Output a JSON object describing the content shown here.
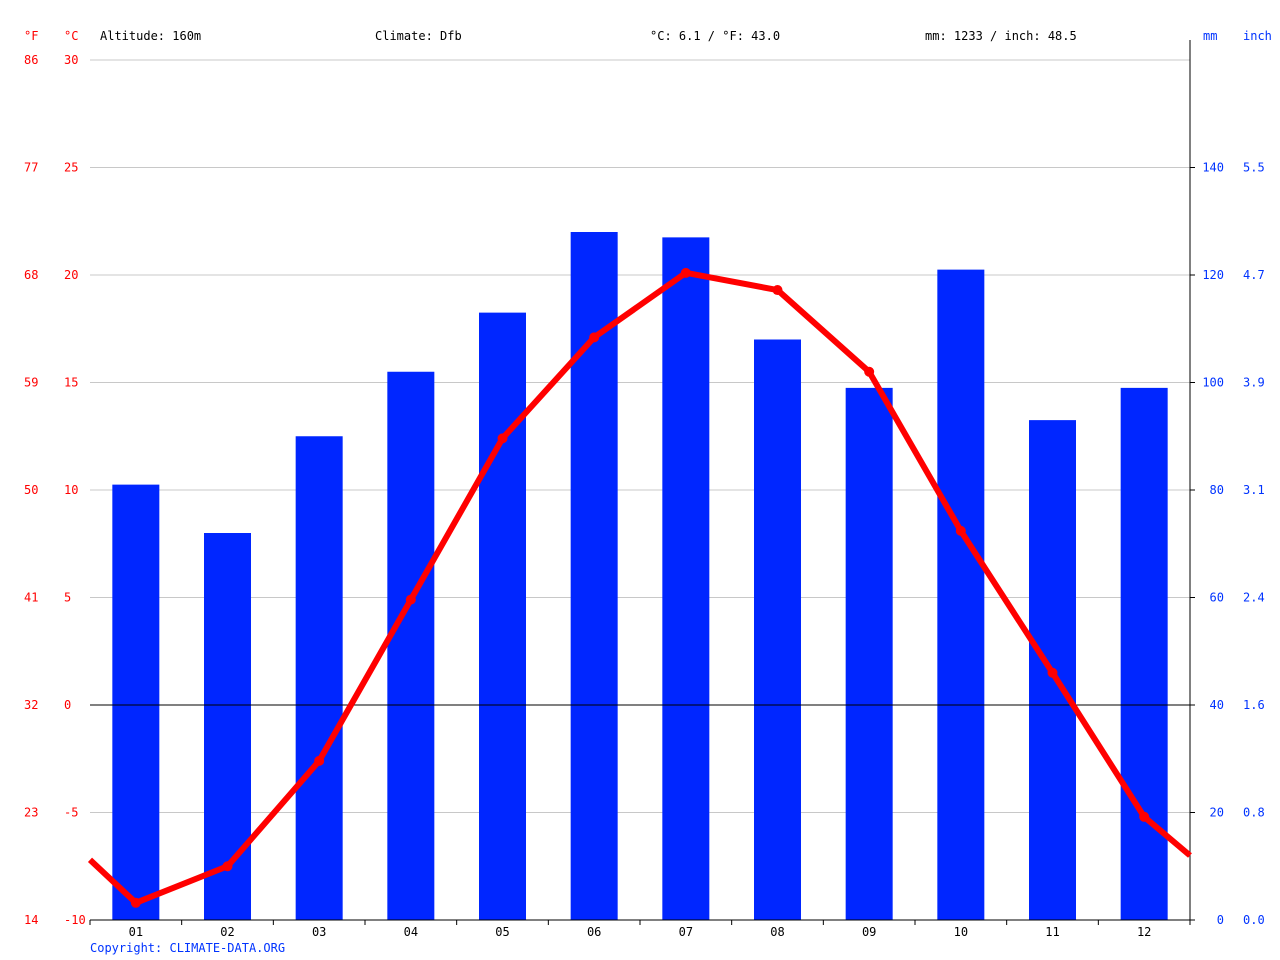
{
  "chart_data": {
    "type": "bar",
    "header": {
      "f_unit": "°F",
      "c_unit": "°C",
      "altitude": "Altitude: 160m",
      "climate": "Climate: Dfb",
      "temp_avg": "°C: 6.1 / °F: 43.0",
      "precip_total": "mm: 1233 / inch: 48.5",
      "mm_unit": "mm",
      "inch_unit": "inch"
    },
    "categories": [
      "01",
      "02",
      "03",
      "04",
      "05",
      "06",
      "07",
      "08",
      "09",
      "10",
      "11",
      "12"
    ],
    "series": [
      {
        "axis": "right",
        "type": "bar",
        "color": "#0026ff",
        "values": [
          81,
          72,
          90,
          102,
          113,
          128,
          127,
          108,
          99,
          121,
          93,
          99
        ]
      },
      {
        "axis": "left",
        "type": "line",
        "color": "#ff0000",
        "values": [
          -9.2,
          -7.5,
          -2.6,
          4.9,
          12.4,
          17.1,
          20.1,
          19.3,
          15.5,
          8.1,
          1.5,
          -5.2
        ],
        "edge_start": -7.2,
        "edge_end": -7.0
      }
    ],
    "left_axis": {
      "ylim": [
        -10,
        30
      ],
      "ticks_c": [
        "30",
        "25",
        "20",
        "15",
        "10",
        "5",
        "0",
        "-5",
        "-10"
      ],
      "ticks_f": [
        "86",
        "77",
        "68",
        "59",
        "50",
        "41",
        "32",
        "23",
        "14"
      ]
    },
    "right_axis": {
      "ylim": [
        0,
        160
      ],
      "ticks_mm": [
        "140",
        "120",
        "100",
        "80",
        "60",
        "40",
        "20",
        "0"
      ],
      "ticks_inch": [
        "5.5",
        "4.7",
        "3.9",
        "3.1",
        "2.4",
        "1.6",
        "0.8",
        "0.0"
      ]
    },
    "grid": true,
    "copyright": "Copyright: CLIMATE-DATA.ORG",
    "colors": {
      "temp": "#ff0000",
      "precip": "#0026ff",
      "axis_text_left": "#ff0000",
      "axis_text_right": "#0033ff"
    }
  }
}
